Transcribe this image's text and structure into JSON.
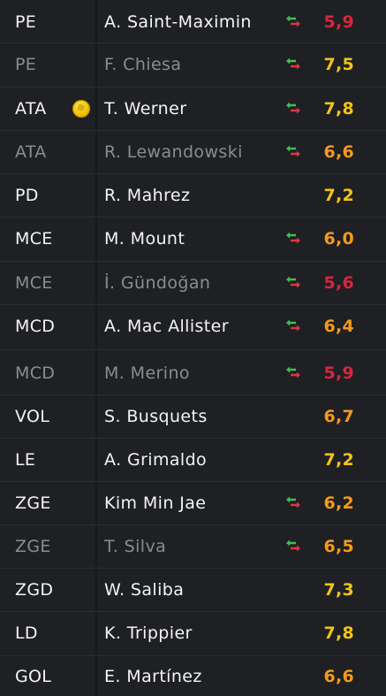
{
  "colors": {
    "rating_red": "#d7263d",
    "rating_orange": "#f39a1c",
    "rating_yellow": "#f2c318",
    "arrow_green": "#3fbf4f",
    "arrow_red": "#e0343f"
  },
  "players": [
    {
      "position": "PE",
      "name": "A. Saint-Maximin",
      "rating": "5,9",
      "rating_color": "#d7263d",
      "sub_icon": true,
      "goal_icon": false,
      "state": "active"
    },
    {
      "position": "PE",
      "name": "F. Chiesa",
      "rating": "7,5",
      "rating_color": "#f2c318",
      "sub_icon": true,
      "goal_icon": false,
      "state": "bench"
    },
    {
      "position": "ATA",
      "name": "T. Werner",
      "rating": "7,8",
      "rating_color": "#f2c318",
      "sub_icon": true,
      "goal_icon": true,
      "state": "active"
    },
    {
      "position": "ATA",
      "name": "R. Lewandowski",
      "rating": "6,6",
      "rating_color": "#f39a1c",
      "sub_icon": true,
      "goal_icon": false,
      "state": "bench"
    },
    {
      "position": "PD",
      "name": "R. Mahrez",
      "rating": "7,2",
      "rating_color": "#f2c318",
      "sub_icon": false,
      "goal_icon": false,
      "state": "active"
    },
    {
      "position": "MCE",
      "name": "M. Mount",
      "rating": "6,0",
      "rating_color": "#f39a1c",
      "sub_icon": true,
      "goal_icon": false,
      "state": "active"
    },
    {
      "position": "MCE",
      "name": "İ. Gündoğan",
      "rating": "5,6",
      "rating_color": "#d7263d",
      "sub_icon": true,
      "goal_icon": false,
      "state": "bench"
    },
    {
      "position": "MCD",
      "name": "A. Mac Allister",
      "rating": "6,4",
      "rating_color": "#f39a1c",
      "sub_icon": true,
      "goal_icon": false,
      "state": "active"
    },
    {
      "position": "MCD",
      "name": "M. Merino",
      "rating": "5,9",
      "rating_color": "#d7263d",
      "sub_icon": true,
      "goal_icon": false,
      "state": "bench"
    },
    {
      "position": "VOL",
      "name": "S. Busquets",
      "rating": "6,7",
      "rating_color": "#f39a1c",
      "sub_icon": false,
      "goal_icon": false,
      "state": "active"
    },
    {
      "position": "LE",
      "name": "A. Grimaldo",
      "rating": "7,2",
      "rating_color": "#f2c318",
      "sub_icon": false,
      "goal_icon": false,
      "state": "active"
    },
    {
      "position": "ZGE",
      "name": "Kim Min Jae",
      "rating": "6,2",
      "rating_color": "#f39a1c",
      "sub_icon": true,
      "goal_icon": false,
      "state": "active"
    },
    {
      "position": "ZGE",
      "name": "T. Silva",
      "rating": "6,5",
      "rating_color": "#f39a1c",
      "sub_icon": true,
      "goal_icon": false,
      "state": "bench"
    },
    {
      "position": "ZGD",
      "name": "W. Saliba",
      "rating": "7,3",
      "rating_color": "#f2c318",
      "sub_icon": false,
      "goal_icon": false,
      "state": "active"
    },
    {
      "position": "LD",
      "name": "K. Trippier",
      "rating": "7,8",
      "rating_color": "#f2c318",
      "sub_icon": false,
      "goal_icon": false,
      "state": "active"
    },
    {
      "position": "GOL",
      "name": "E. Martínez",
      "rating": "6,6",
      "rating_color": "#f39a1c",
      "sub_icon": false,
      "goal_icon": false,
      "state": "active"
    }
  ]
}
